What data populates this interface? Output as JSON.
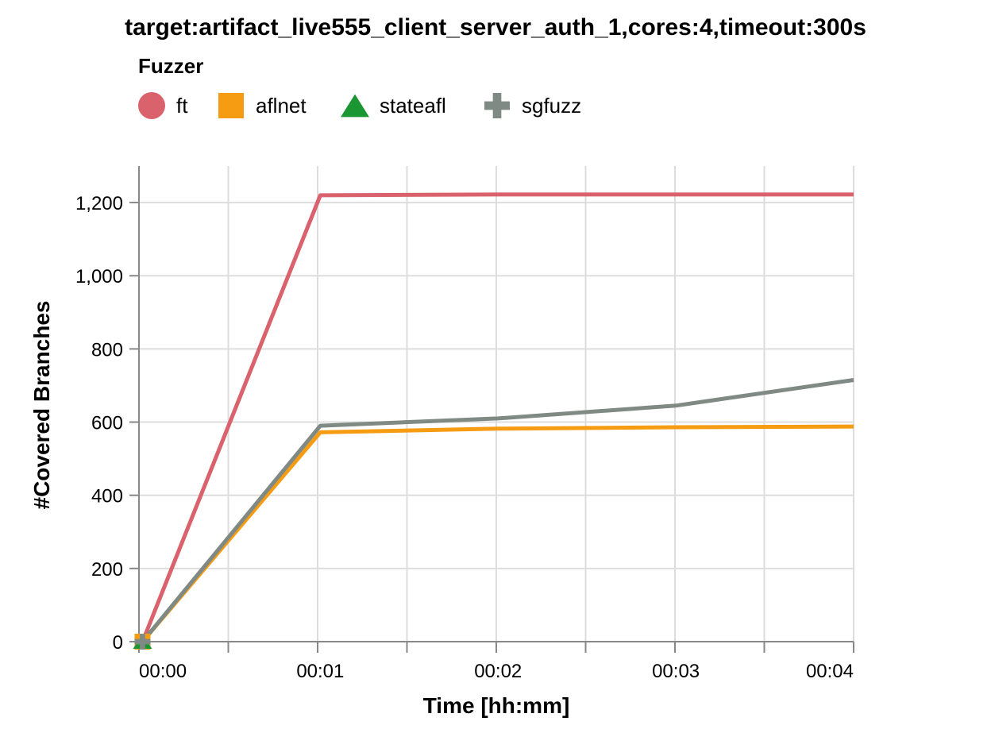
{
  "chart_data": {
    "type": "line",
    "title": "target:artifact_live555_client_server_auth_1,cores:4,timeout:300s",
    "xlabel": "Time [hh:mm]",
    "ylabel": "#Covered Branches",
    "legend": {
      "title": "Fuzzer",
      "placement": "top-left"
    },
    "x_ticks": [
      "00:00",
      "00:01",
      "00:02",
      "00:03",
      "00:04"
    ],
    "x_range_minutes": [
      -0.02,
      4
    ],
    "y_ticks": [
      "0",
      "200",
      "400",
      "600",
      "800",
      "1,000",
      "1,200"
    ],
    "y_tick_values": [
      0,
      200,
      400,
      600,
      800,
      1000,
      1200
    ],
    "ylim": [
      0,
      1300
    ],
    "grid": true,
    "series": [
      {
        "name": "ft",
        "color": "#d9626c",
        "marker": "circle",
        "points": [
          [
            0,
            0
          ],
          [
            1,
            1220
          ],
          [
            2,
            1222
          ],
          [
            3,
            1222
          ],
          [
            4,
            1222
          ]
        ]
      },
      {
        "name": "aflnet",
        "color": "#f59c12",
        "marker": "square",
        "points": [
          [
            0,
            0
          ],
          [
            1,
            572
          ],
          [
            2,
            582
          ],
          [
            3,
            586
          ],
          [
            4,
            588
          ]
        ]
      },
      {
        "name": "stateafl",
        "color": "#1a9632",
        "marker": "triangle",
        "points": [
          [
            0,
            0
          ]
        ]
      },
      {
        "name": "sgfuzz",
        "color": "#808a85",
        "marker": "cross",
        "points": [
          [
            0,
            0
          ],
          [
            1,
            590
          ],
          [
            2,
            610
          ],
          [
            3,
            645
          ],
          [
            4,
            715
          ]
        ]
      }
    ]
  }
}
